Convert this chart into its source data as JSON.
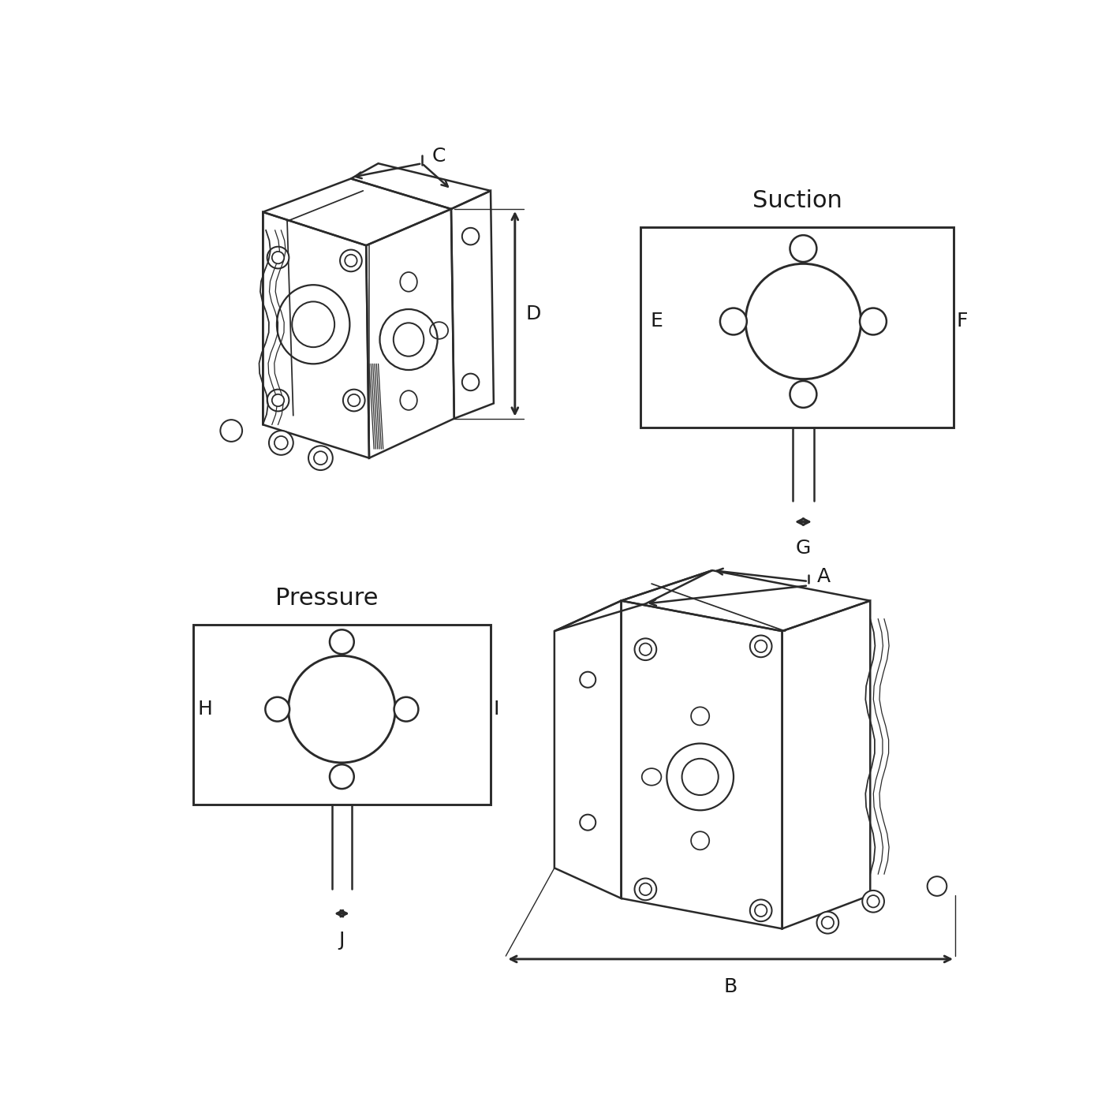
{
  "background_color": "#ffffff",
  "line_color": "#2a2a2a",
  "text_color": "#1a1a1a",
  "fig_width": 14.06,
  "fig_height": 14.06,
  "dpi": 100,
  "suction_label": "Suction",
  "pressure_label": "Pressure",
  "dim_labels": {
    "A": "A",
    "B": "B",
    "C": "C",
    "D": "D",
    "E": "E",
    "F": "F",
    "G": "G",
    "H": "H",
    "I": "I",
    "J": "J"
  },
  "font_size_labels": 18,
  "font_size_section": 20,
  "lw": 1.8,
  "lw_thin": 1.0
}
